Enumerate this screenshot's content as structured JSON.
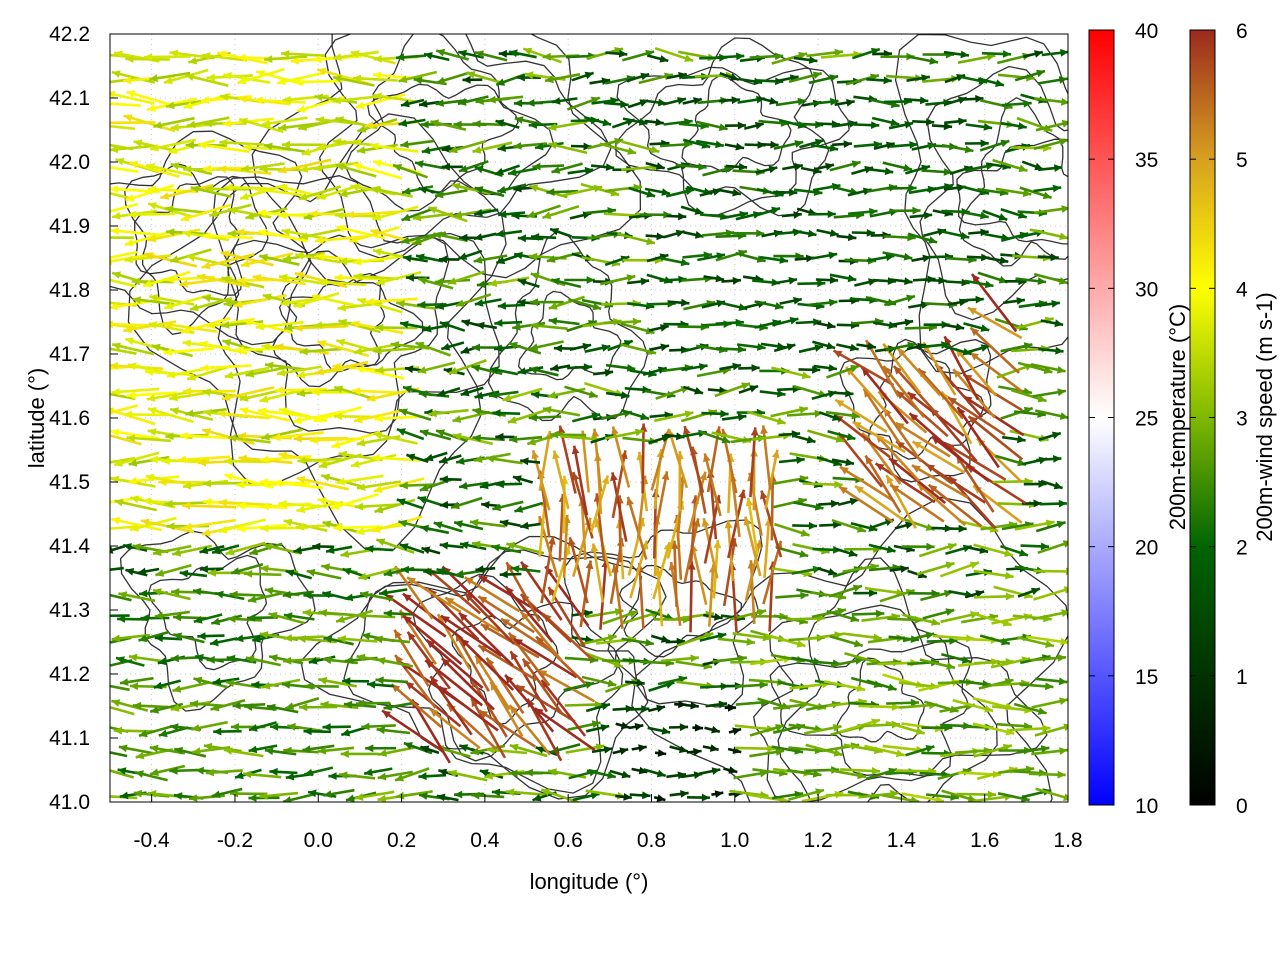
{
  "chart_data": {
    "type": "vector-field-map",
    "xlabel": "longitude (°)",
    "ylabel": "latitude (°)",
    "xlim": [
      -0.5,
      1.8
    ],
    "ylim": [
      41.0,
      42.2
    ],
    "xticks": [
      "-0.4",
      "-0.2",
      "0.0",
      "0.2",
      "0.4",
      "0.6",
      "0.8",
      "1.0",
      "1.2",
      "1.4",
      "1.6",
      "1.8"
    ],
    "xtick_values": [
      -0.4,
      -0.2,
      0.0,
      0.2,
      0.4,
      0.6,
      0.8,
      1.0,
      1.2,
      1.4,
      1.6,
      1.8
    ],
    "yticks": [
      "41.0",
      "41.1",
      "41.2",
      "41.3",
      "41.4",
      "41.5",
      "41.6",
      "41.7",
      "41.8",
      "41.9",
      "42.0",
      "42.1",
      "42.2"
    ],
    "ytick_values": [
      41.0,
      41.1,
      41.2,
      41.3,
      41.4,
      41.5,
      41.6,
      41.7,
      41.8,
      41.9,
      42.0,
      42.1,
      42.2
    ],
    "grid": true,
    "contours": "terrain elevation contours (dark grey)",
    "colorbars": [
      {
        "label": "200m-temperature (°C)",
        "range": [
          10,
          40
        ],
        "ticks": [
          "10",
          "15",
          "20",
          "25",
          "30",
          "35",
          "40"
        ],
        "tick_values": [
          10,
          15,
          20,
          25,
          30,
          35,
          40
        ],
        "colors": [
          "#0000ff",
          "#ffffff",
          "#ff0000"
        ]
      },
      {
        "label": "200m-wind speed (m s-1)",
        "range": [
          0,
          6
        ],
        "ticks": [
          "0",
          "1",
          "2",
          "3",
          "4",
          "5",
          "6"
        ],
        "tick_values": [
          0,
          1,
          2,
          3,
          4,
          5,
          6
        ],
        "colors": [
          "#000000",
          "#006400",
          "#7fb800",
          "#ffff00",
          "#d7a020",
          "#9c2a1e"
        ]
      }
    ],
    "wind_regions": [
      {
        "description": "strong easterly-origin flow (westward arrows), western third",
        "lon": [
          -0.5,
          0.2
        ],
        "lat": [
          41.4,
          42.2
        ],
        "speed_ms": 3.8,
        "direction": "westward"
      },
      {
        "description": "weak westerly flow, northeast",
        "lon": [
          0.8,
          1.6
        ],
        "lat": [
          41.7,
          42.1
        ],
        "speed_ms": 1.8,
        "direction": "eastward"
      },
      {
        "description": "strong north-westward flow, southwest hills",
        "lon": [
          0.2,
          0.6
        ],
        "lat": [
          41.1,
          41.35
        ],
        "speed_ms": 5.8,
        "direction": "northwestward"
      },
      {
        "description": "divergent strong flow, central",
        "lon": [
          0.5,
          1.1
        ],
        "lat": [
          41.3,
          41.55
        ],
        "speed_ms": 5.3,
        "direction": "northward"
      },
      {
        "description": "strong flow, eastern hills",
        "lon": [
          1.3,
          1.65
        ],
        "lat": [
          41.45,
          41.8
        ],
        "speed_ms": 5.5,
        "direction": "northwestward"
      },
      {
        "description": "moderate easterly flow, southeast",
        "lon": [
          1.0,
          1.8
        ],
        "lat": [
          41.0,
          41.3
        ],
        "speed_ms": 2.8,
        "direction": "eastward"
      },
      {
        "description": "weak flow, south-central lowlands",
        "lon": [
          0.7,
          1.2
        ],
        "lat": [
          41.0,
          41.15
        ],
        "speed_ms": 1.0,
        "direction": "eastward"
      },
      {
        "description": "moderate flow, western lowlands",
        "lon": [
          -0.5,
          0.2
        ],
        "lat": [
          41.0,
          41.35
        ],
        "speed_ms": 2.5,
        "direction": "westward"
      }
    ]
  }
}
